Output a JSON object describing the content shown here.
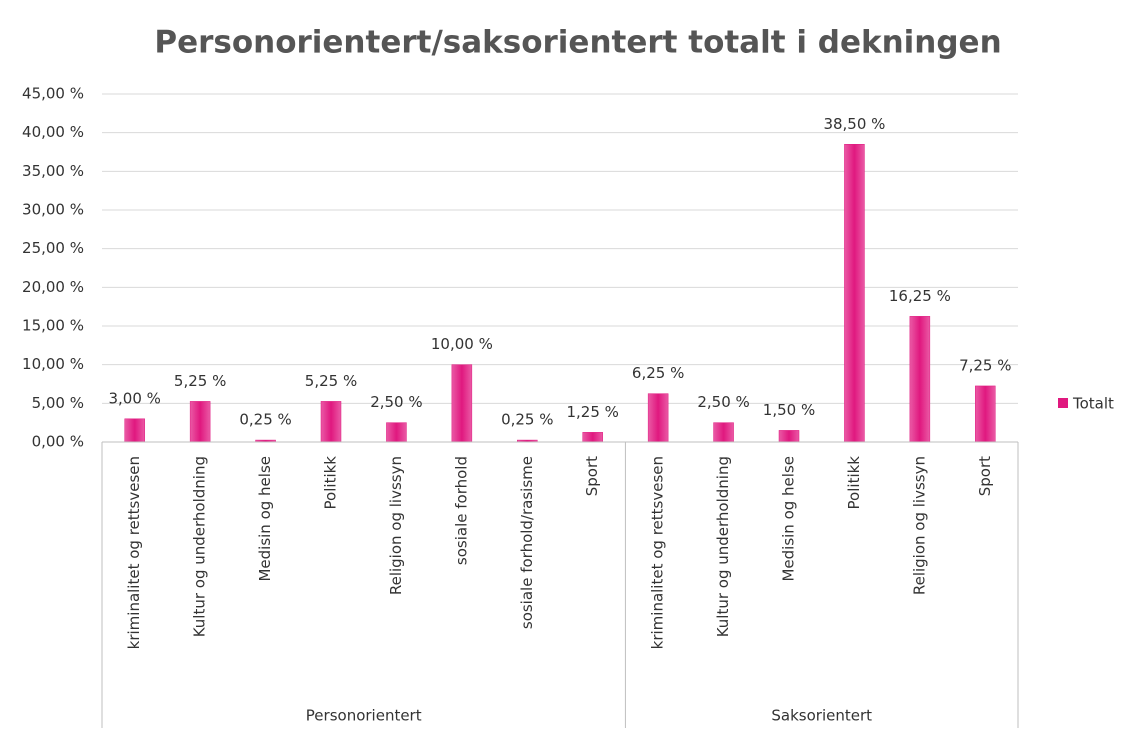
{
  "chart_data": {
    "type": "bar",
    "title": "Personorientert/saksorientert totalt i dekningen",
    "series": [
      {
        "name": "Totalt",
        "color": "#e0187f"
      }
    ],
    "groups": [
      {
        "name": "Personorientert",
        "categories": [
          "kriminalitet og rettsvesen",
          "Kultur og underholdning",
          "Medisin og helse",
          "Politikk",
          "Religion og livssyn",
          "sosiale forhold",
          "sosiale forhold/rasisme",
          "Sport"
        ],
        "values": [
          3,
          5.25,
          0.25,
          5.25,
          2.5,
          10,
          0.25,
          1.25
        ],
        "value_labels": [
          "3,00 %",
          "5,25 %",
          "0,25 %",
          "5,25 %",
          "2,50 %",
          "10,00 %",
          "0,25 %",
          "1,25 %"
        ]
      },
      {
        "name": "Saksorientert",
        "categories": [
          "kriminalitet og rettsvesen",
          "Kultur og underholdning",
          "Medisin og helse",
          "Politikk",
          "Religion og livssyn",
          "Sport"
        ],
        "values": [
          6.25,
          2.5,
          1.5,
          38.5,
          16.25,
          7.25
        ],
        "value_labels": [
          "6,25 %",
          "2,50 %",
          "1,50 %",
          "38,50 %",
          "16,25 %",
          "7,25 %"
        ]
      }
    ],
    "ylim": [
      0,
      45
    ],
    "yticks": [
      {
        "value": 0,
        "label": "0,00 %"
      },
      {
        "value": 5,
        "label": "5,00 %"
      },
      {
        "value": 10,
        "label": "10,00 %"
      },
      {
        "value": 15,
        "label": "15,00 %"
      },
      {
        "value": 20,
        "label": "20,00 %"
      },
      {
        "value": 25,
        "label": "25,00 %"
      },
      {
        "value": 30,
        "label": "30,00 %"
      },
      {
        "value": 35,
        "label": "35,00 %"
      },
      {
        "value": 40,
        "label": "40,00 %"
      },
      {
        "value": 45,
        "label": "45,00 %"
      }
    ],
    "grid": true,
    "legend": "right"
  }
}
